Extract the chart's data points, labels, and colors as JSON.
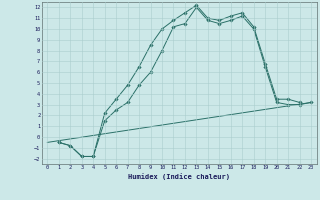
{
  "xlabel": "Humidex (Indice chaleur)",
  "ylabel": "",
  "background_color": "#cce8e8",
  "grid_color": "#aacece",
  "line_color": "#2a7068",
  "xlim": [
    -0.5,
    23.5
  ],
  "ylim": [
    -2.5,
    12.5
  ],
  "s1x": [
    1,
    2,
    3,
    4,
    5,
    6,
    7,
    8,
    9,
    10,
    11,
    12,
    13,
    14,
    15,
    16,
    17,
    18,
    19,
    20,
    21,
    22
  ],
  "s1y": [
    -0.5,
    -0.8,
    -1.8,
    -1.8,
    2.2,
    3.5,
    4.8,
    6.5,
    8.5,
    10.0,
    10.8,
    11.5,
    12.2,
    11.0,
    10.8,
    11.2,
    11.5,
    10.2,
    6.8,
    3.5,
    3.5,
    3.2
  ],
  "s2x": [
    1,
    2,
    3,
    4,
    5,
    6,
    7,
    8,
    9,
    10,
    11,
    12,
    13,
    14,
    15,
    16,
    17,
    18,
    19,
    20,
    21,
    22,
    23
  ],
  "s2y": [
    -0.5,
    -0.8,
    -1.8,
    -1.8,
    1.5,
    2.5,
    3.2,
    4.8,
    6.0,
    8.0,
    10.2,
    10.5,
    12.0,
    10.8,
    10.5,
    10.8,
    11.2,
    10.0,
    6.5,
    3.2,
    3.0,
    3.0,
    3.2
  ],
  "s3x": [
    0,
    23
  ],
  "s3y": [
    -0.5,
    3.2
  ]
}
